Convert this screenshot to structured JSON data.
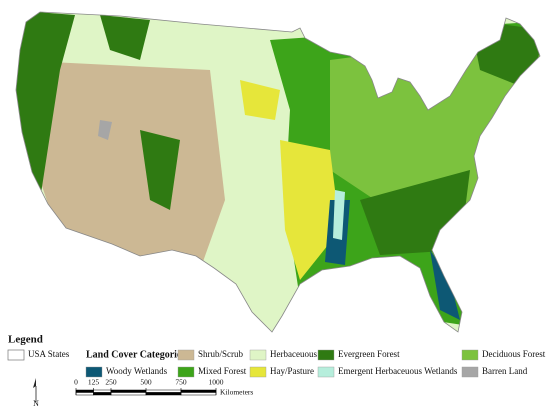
{
  "legend": {
    "title": "Legend",
    "states_label": "USA States",
    "categories_title": "Land Cover Categories",
    "categories": [
      {
        "label": "Shrub/Scrub",
        "color": "#ccb894"
      },
      {
        "label": "Herbaceuous",
        "color": "#dff5c6"
      },
      {
        "label": "Evergreen Forest",
        "color": "#2f7a12"
      },
      {
        "label": "Deciduous Forest",
        "color": "#7cc23e"
      },
      {
        "label": "Woody Wetlands",
        "color": "#0d5874"
      },
      {
        "label": "Mixed Forest",
        "color": "#3da41a"
      },
      {
        "label": "Hay/Pasture",
        "color": "#e6e63a"
      },
      {
        "label": "Emergent Herbaceuous Wetlands",
        "color": "#b6eedc"
      },
      {
        "label": "Barren Land",
        "color": "#a6a6a6"
      }
    ]
  },
  "scale_bar": {
    "ticks": [
      0,
      125,
      250,
      500,
      750,
      1000
    ],
    "unit": "Kilometers"
  },
  "north_arrow": {
    "label": "N"
  }
}
